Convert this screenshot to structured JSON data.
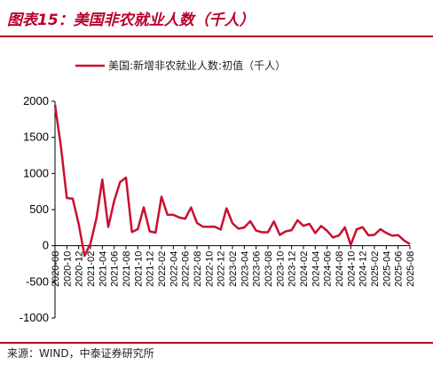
{
  "header": {
    "title": "图表15：美国非农就业人数（千人）"
  },
  "footer": {
    "source": "来源：WIND，中泰证券研究所"
  },
  "colors": {
    "accent": "#b8002b",
    "line": "#c8102e"
  },
  "chart_data": {
    "type": "line",
    "title": "",
    "xlabel": "",
    "ylabel": "",
    "ylim": [
      -1000,
      2000
    ],
    "yticks": [
      -1000,
      -500,
      0,
      500,
      1000,
      1500,
      2000
    ],
    "legend_position": "top",
    "grid": false,
    "x_tick_labels": [
      "2020-08",
      "2020-10",
      "2020-12",
      "2021-02",
      "2021-04",
      "2021-06",
      "2021-08",
      "2021-10",
      "2021-12",
      "2022-02",
      "2022-04",
      "2022-06",
      "2022-08",
      "2022-10",
      "2022-12",
      "2023-02",
      "2023-04",
      "2023-06",
      "2023-08",
      "2023-10",
      "2023-12",
      "2024-02",
      "2024-04",
      "2024-06",
      "2024-08",
      "2024-10",
      "2024-12",
      "2025-02",
      "2025-04",
      "2025-06",
      "2025-08"
    ],
    "series": [
      {
        "name": "美国:新增非农就业人数:初值（千人）",
        "x": [
          "2020-08",
          "2020-09",
          "2020-10",
          "2020-11",
          "2020-12",
          "2021-01",
          "2021-02",
          "2021-03",
          "2021-04",
          "2021-05",
          "2021-06",
          "2021-07",
          "2021-08",
          "2021-09",
          "2021-10",
          "2021-11",
          "2021-12",
          "2022-01",
          "2022-02",
          "2022-03",
          "2022-04",
          "2022-05",
          "2022-06",
          "2022-07",
          "2022-08",
          "2022-09",
          "2022-10",
          "2022-11",
          "2022-12",
          "2023-01",
          "2023-02",
          "2023-03",
          "2023-04",
          "2023-05",
          "2023-06",
          "2023-07",
          "2023-08",
          "2023-09",
          "2023-10",
          "2023-11",
          "2023-12",
          "2024-01",
          "2024-02",
          "2024-03",
          "2024-04",
          "2024-05",
          "2024-06",
          "2024-07",
          "2024-08",
          "2024-09",
          "2024-10",
          "2024-11",
          "2024-12",
          "2025-01",
          "2025-02",
          "2025-03",
          "2025-04",
          "2025-05",
          "2025-06",
          "2025-07",
          "2025-08"
        ],
        "values": [
          1950,
          1370,
          660,
          650,
          300,
          -140,
          30,
          380,
          916,
          260,
          620,
          880,
          943,
          190,
          230,
          532,
          199,
          180,
          678,
          430,
          428,
          390,
          372,
          530,
          315,
          263,
          261,
          263,
          223,
          517,
          311,
          236,
          253,
          339,
          209,
          187,
          187,
          336,
          150,
          199,
          216,
          353,
          275,
          303,
          175,
          272,
          206,
          114,
          142,
          254,
          12,
          227,
          256,
          143,
          151,
          228,
          177,
          139,
          147,
          73,
          22
        ]
      }
    ]
  }
}
